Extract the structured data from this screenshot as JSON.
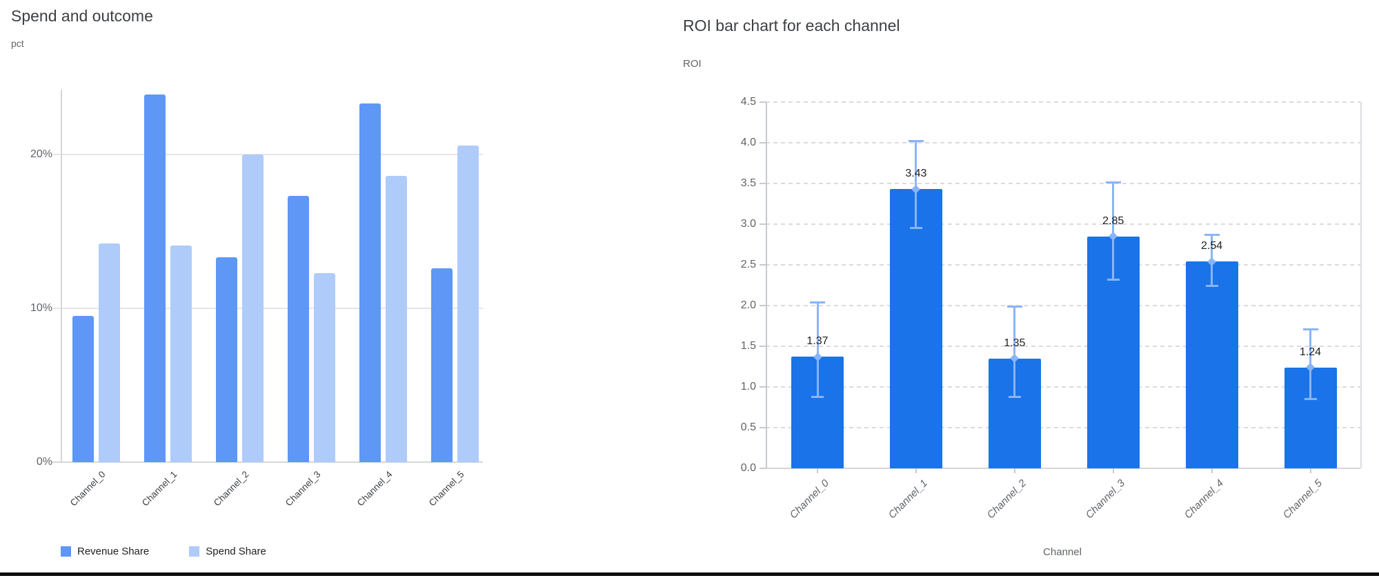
{
  "page": {
    "background_color": "#ffffff",
    "bottom_border_color": "#0b0b0b"
  },
  "left_chart": {
    "title": "Spend and outcome",
    "y_axis_unit": "pct",
    "legend": [
      "Revenue Share",
      "Spend Share"
    ]
  },
  "right_chart": {
    "title": "ROI bar chart for each channel",
    "y_axis_unit": "ROI",
    "x_axis_title": "Channel"
  },
  "chart_data": [
    {
      "type": "bar",
      "title": "Spend and outcome",
      "ylabel": "pct",
      "categories": [
        "Channel_0",
        "Channel_1",
        "Channel_2",
        "Channel_3",
        "Channel_4",
        "Channel_5"
      ],
      "series": [
        {
          "name": "Revenue Share",
          "color": "#5e97f6",
          "values": [
            9.5,
            23.9,
            13.3,
            17.3,
            23.3,
            12.6
          ]
        },
        {
          "name": "Spend Share",
          "color": "#aecbfa",
          "values": [
            14.2,
            14.1,
            20.0,
            12.3,
            18.6,
            20.6
          ]
        }
      ],
      "y_ticks": [
        {
          "value": 0,
          "label": "0%"
        },
        {
          "value": 10,
          "label": "10%"
        },
        {
          "value": 20,
          "label": "20%"
        }
      ],
      "ylim": [
        0,
        24.2
      ],
      "grid": "solid",
      "legend_position": "bottom"
    },
    {
      "type": "bar",
      "title": "ROI bar chart for each channel",
      "ylabel": "ROI",
      "xlabel": "Channel",
      "categories": [
        "Channel_0",
        "Channel_1",
        "Channel_2",
        "Channel_3",
        "Channel_4",
        "Channel_5"
      ],
      "values": [
        1.37,
        3.43,
        1.35,
        2.85,
        2.54,
        1.24
      ],
      "value_labels": [
        "1.37",
        "3.43",
        "1.35",
        "2.85",
        "2.54",
        "1.24"
      ],
      "error_low": [
        0.88,
        2.95,
        0.88,
        2.32,
        2.24,
        0.85
      ],
      "error_high": [
        2.04,
        4.02,
        1.99,
        3.51,
        2.87,
        1.71
      ],
      "bar_color": "#1a73e8",
      "error_color": "#8ab4f8",
      "y_ticks": [
        {
          "value": 0.0,
          "label": "0.0"
        },
        {
          "value": 0.5,
          "label": "0.5"
        },
        {
          "value": 1.0,
          "label": "1.0"
        },
        {
          "value": 1.5,
          "label": "1.5"
        },
        {
          "value": 2.0,
          "label": "2.0"
        },
        {
          "value": 2.5,
          "label": "2.5"
        },
        {
          "value": 3.0,
          "label": "3.0"
        },
        {
          "value": 3.5,
          "label": "3.5"
        },
        {
          "value": 4.0,
          "label": "4.0"
        },
        {
          "value": 4.5,
          "label": "4.5"
        }
      ],
      "ylim": [
        0,
        4.5
      ],
      "grid": "dashed"
    }
  ]
}
